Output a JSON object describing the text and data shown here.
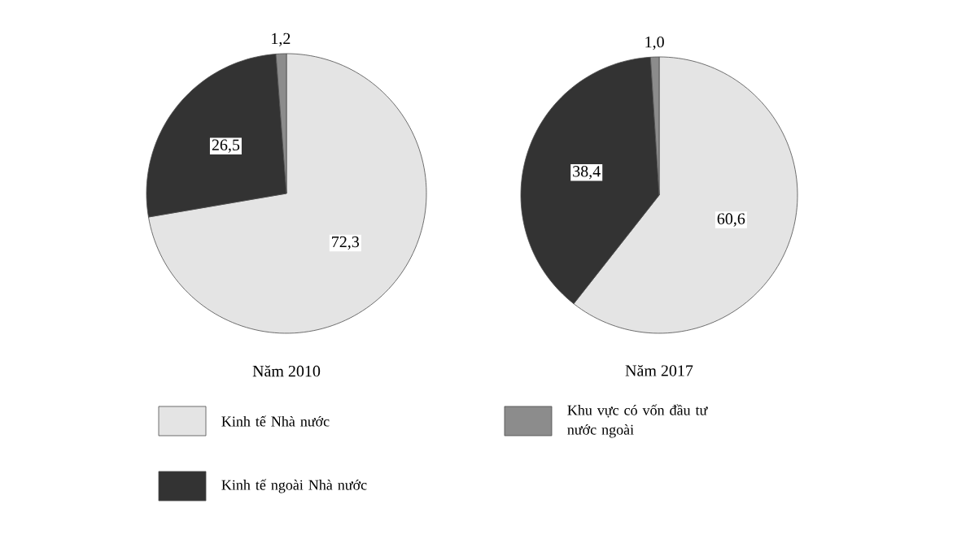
{
  "chart_data": [
    {
      "type": "pie",
      "title": "Năm 2010",
      "categories": [
        "Kinh tế Nhà nước",
        "Kinh tế ngoài Nhà nước",
        "Khu vực có vốn đầu tư nước ngoài"
      ],
      "values": [
        72.3,
        26.5,
        1.2
      ],
      "colors": [
        "#e4e4e4",
        "#333333",
        "#8c8c8c"
      ],
      "value_labels": [
        "72,3",
        "26,5",
        "1,2"
      ],
      "legend": "bottom"
    },
    {
      "type": "pie",
      "title": "Năm 2017",
      "categories": [
        null,
        null,
        null
      ],
      "values": [
        60.6,
        38.4,
        1.0
      ],
      "colors": [
        "#e4e4e4",
        "#333333",
        "#8c8c8c"
      ],
      "value_labels": [
        "60,6",
        "38,4",
        "1,0"
      ]
    }
  ]
}
